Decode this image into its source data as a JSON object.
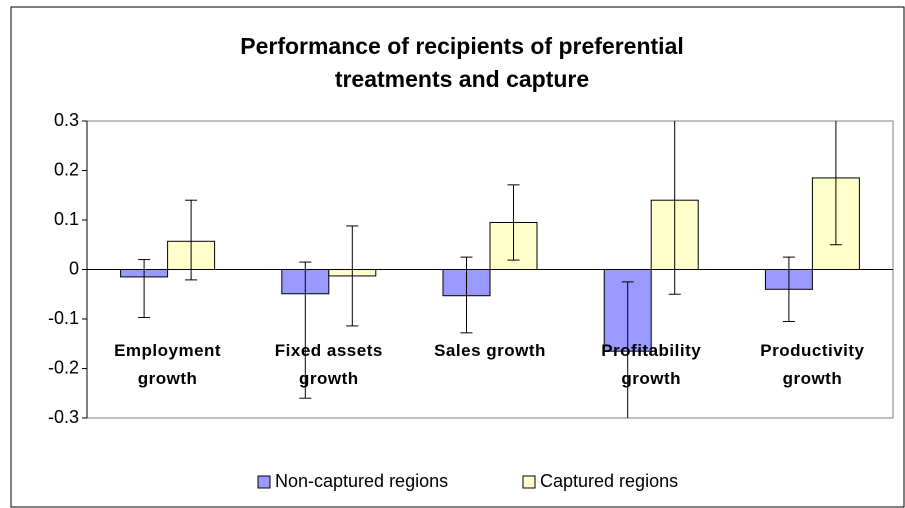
{
  "chart_data": {
    "type": "bar",
    "title": "Performance of recipients of preferential\ntreatments and capture",
    "categories": [
      "Employment\ngrowth",
      "Fixed assets\ngrowth",
      "Sales growth",
      "Profitability\ngrowth",
      "Productivity\ngrowth"
    ],
    "series": [
      {
        "name": "Non-captured regions",
        "color": "#9999ff",
        "values": [
          -0.015,
          -0.049,
          -0.053,
          -0.165,
          -0.04
        ],
        "errors_minus": [
          0.082,
          0.211,
          0.075,
          0.14,
          0.065
        ],
        "errors_plus": [
          0.035,
          0.064,
          0.078,
          0.14,
          0.065
        ]
      },
      {
        "name": "Captured regions",
        "color": "#ffffcc",
        "values": [
          0.057,
          -0.013,
          0.095,
          0.14,
          0.185
        ],
        "errors_minus": [
          0.078,
          0.101,
          0.076,
          0.19,
          0.135
        ],
        "errors_plus": [
          0.083,
          0.101,
          0.076,
          0.19,
          0.135
        ]
      }
    ],
    "ylim": [
      -0.3,
      0.3
    ],
    "yticks": [
      0.3,
      0.2,
      0.1,
      0,
      -0.1,
      -0.2,
      -0.3
    ],
    "legend": "bottom"
  }
}
